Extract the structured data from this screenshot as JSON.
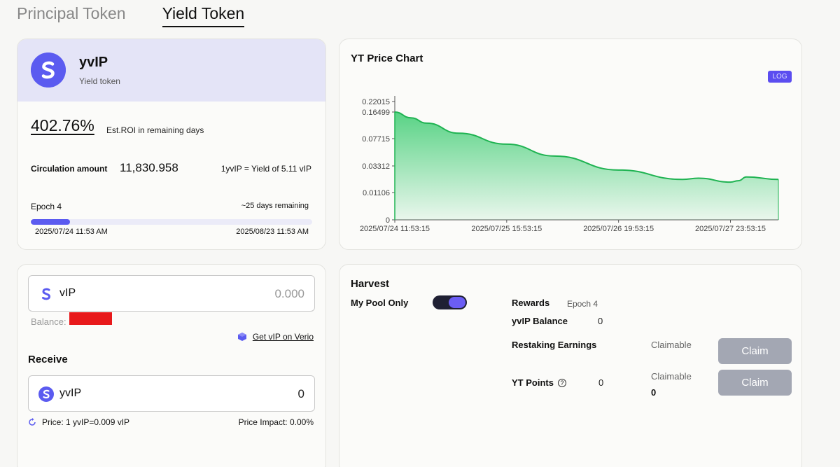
{
  "tabs": {
    "principal": "Principal Token",
    "yield": "Yield Token"
  },
  "token": {
    "name": "yvIP",
    "subtitle": "Yield token",
    "roi_value": "402.76%",
    "roi_label": "Est.ROI in remaining days",
    "circulation_label": "Circulation amount",
    "circulation_value": "11,830.958",
    "yield_note": "1yvIP = Yield of 5.11 vIP",
    "epoch_label": "Epoch 4",
    "remaining": "~25 days remaining",
    "progress_fraction": 0.14,
    "start_date": "2025/07/24 11:53 AM",
    "end_date": "2025/08/23 11:53 AM",
    "accent_color": "#5b5bf0"
  },
  "chart": {
    "title": "YT Price Chart",
    "scale_badge": "LOG"
  },
  "chart_data": {
    "type": "area",
    "title": "YT Price Chart",
    "yscale": "log",
    "y_tick_labels": [
      "0.22015",
      "0.16499",
      "0.07715",
      "0.03312",
      "0.01106",
      "0"
    ],
    "x_tick_labels": [
      "2025/07/24 11:53:15",
      "2025/07/25 15:53:15",
      "2025/07/26 19:53:15",
      "2025/07/27 23:53:15"
    ],
    "x": [
      "2025/07/24 11:53:15",
      "2025/07/24 15:53:15",
      "2025/07/24 19:53:15",
      "2025/07/25 03:53:15",
      "2025/07/25 15:53:15",
      "2025/07/26 03:53:15",
      "2025/07/26 19:53:15",
      "2025/07/27 11:53:15",
      "2025/07/27 15:53:15",
      "2025/07/27 23:53:15",
      "2025/07/28 01:53:15",
      "2025/07/28 03:53:15",
      "2025/07/28 11:53:15"
    ],
    "values": [
      0.165,
      0.14,
      0.12,
      0.09,
      0.065,
      0.045,
      0.028,
      0.019,
      0.02,
      0.017,
      0.018,
      0.021,
      0.019
    ],
    "area_color": "#22c55e",
    "grid": false,
    "legend": "none"
  },
  "swap": {
    "input_token": "vIP",
    "input_value": "0.000",
    "balance_label": "Balance:",
    "verio_link": "Get vIP on Verio",
    "receive_label": "Receive",
    "output_token": "yvIP",
    "output_value": "0",
    "price": "Price: 1 yvIP=0.009 vIP",
    "impact": "Price Impact: 0.00%"
  },
  "harvest": {
    "title": "Harvest",
    "pool_only_label": "My Pool Only",
    "pool_only_on": true,
    "rewards_label": "Rewards",
    "rewards_epoch": "Epoch 4",
    "balance_label": "yvIP Balance",
    "balance_value": "0",
    "restaking_label": "Restaking Earnings",
    "restaking_claimable_label": "Claimable",
    "claim_label": "Claim",
    "points_label": "YT Points",
    "points_value": "0",
    "points_claimable_label": "Claimable",
    "points_claimable_value": "0"
  }
}
